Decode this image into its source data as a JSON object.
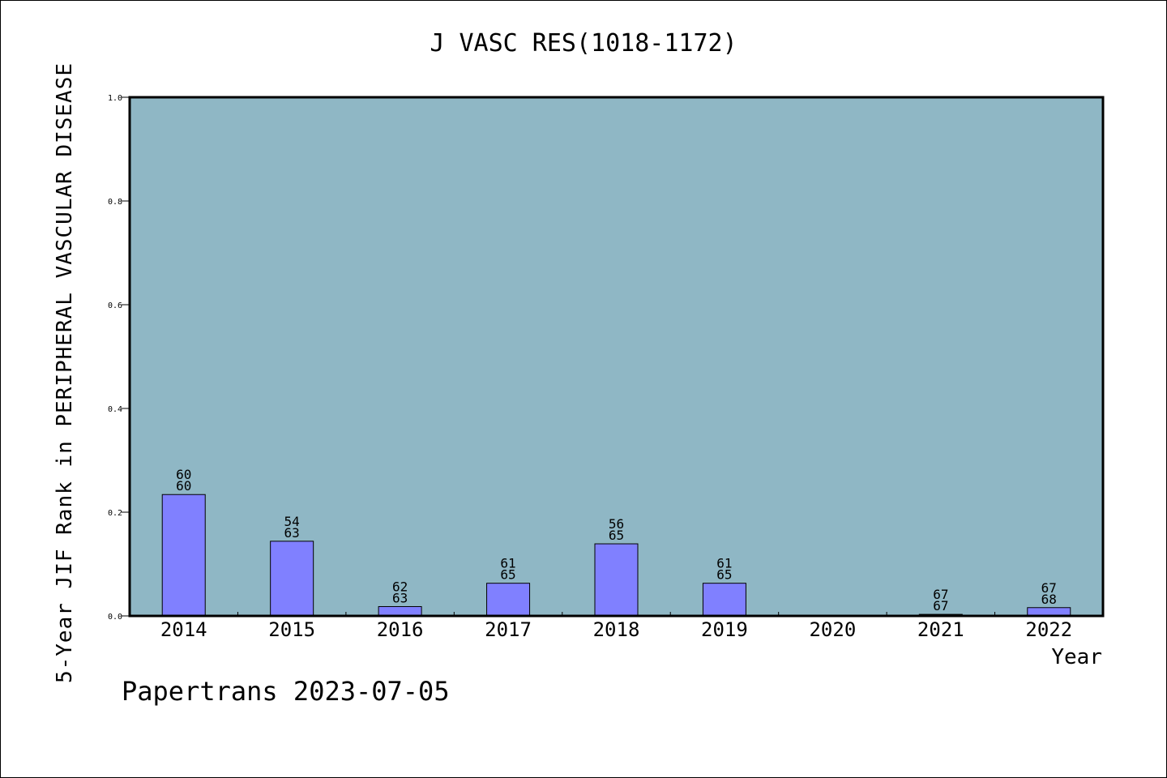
{
  "colors": {
    "plot_background": "#8fb7c5",
    "bar_fill": "#8080ff",
    "bar_stroke": "#000000"
  },
  "chart_data": {
    "type": "bar",
    "title": "J VASC RES(1018-1172)",
    "xlabel": "Year",
    "ylabel": "5-Year JIF Rank in PERIPHERAL VASCULAR DISEASE",
    "ylim": [
      0,
      1.0
    ],
    "yticks": [
      "0.0",
      "0.2",
      "0.4",
      "0.6",
      "0.8",
      "1.0"
    ],
    "grid": false,
    "categories": [
      "2014",
      "2015",
      "2016",
      "2017",
      "2018",
      "2019",
      "2020",
      "2021",
      "2022"
    ],
    "values": [
      0.234,
      0.144,
      0.018,
      0.063,
      0.139,
      0.063,
      null,
      0.003,
      0.016
    ],
    "labels_top": [
      "60",
      "54",
      "62",
      "61",
      "56",
      "61",
      "",
      "67",
      "67"
    ],
    "labels_bottom": [
      "60",
      "63",
      "63",
      "65",
      "65",
      "65",
      "",
      "67",
      "68"
    ]
  },
  "footer": "Papertrans 2023-07-05"
}
